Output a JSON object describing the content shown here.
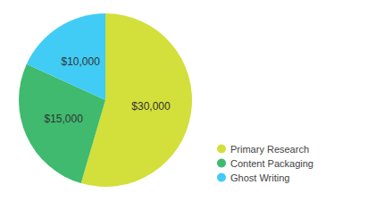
{
  "chart_data": {
    "type": "pie",
    "categories": [
      "Primary Research",
      "Content Packaging",
      "Ghost Writing"
    ],
    "values": [
      30000,
      15000,
      10000
    ],
    "value_labels": [
      "$30,000",
      "$15,000",
      "$10,000"
    ],
    "colors": [
      "#d3df3a",
      "#3fba6f",
      "#40ccf5"
    ],
    "data_labels": true,
    "legend": "right"
  }
}
